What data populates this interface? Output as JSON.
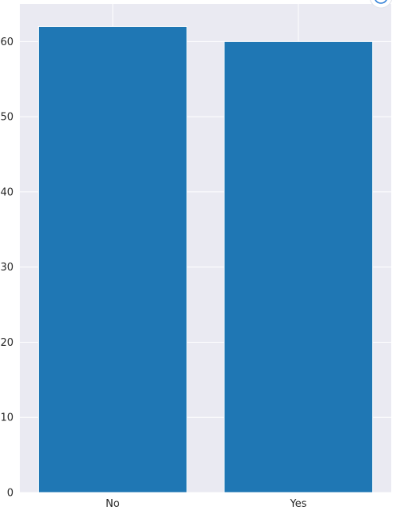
{
  "chart_data": {
    "type": "bar",
    "categories": [
      "No",
      "Yes"
    ],
    "values": [
      62,
      60
    ],
    "title": "",
    "xlabel": "",
    "ylabel": "",
    "ylim": [
      0,
      65
    ],
    "yticks": [
      0,
      10,
      20,
      30,
      40,
      50,
      60
    ],
    "grid": true,
    "colors": {
      "bar": "#1f77b4",
      "plot_background": "#eaeaf2",
      "grid": "#ffffff",
      "text": "#262626"
    }
  },
  "toolbar": {
    "corner_icon": "expand-icon"
  }
}
